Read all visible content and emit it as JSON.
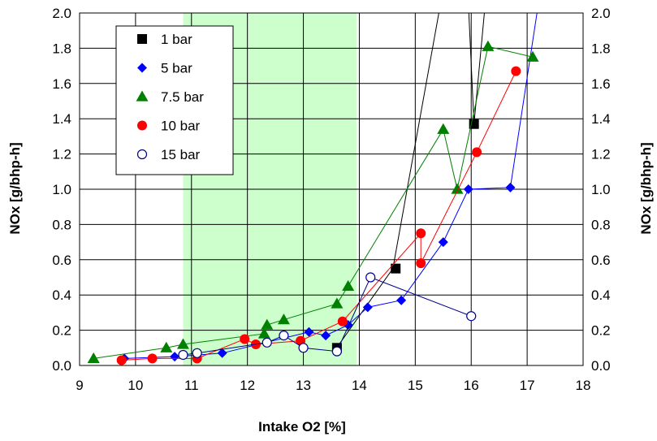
{
  "chart_data": {
    "type": "scatter",
    "xlabel": "Intake O2 [%]",
    "ylabel": "NOx [g/bhp-h]",
    "ylabel_right": "NOx [g/bhp-h]",
    "xlim": [
      9,
      18
    ],
    "ylim": [
      0,
      2.0
    ],
    "x_ticks": [
      "9",
      "10",
      "11",
      "12",
      "13",
      "14",
      "15",
      "16",
      "17",
      "18"
    ],
    "y_ticks": [
      "0.0",
      "0.2",
      "0.4",
      "0.6",
      "0.8",
      "1.0",
      "1.2",
      "1.4",
      "1.6",
      "1.8",
      "2.0"
    ],
    "grid": true,
    "legend_position": "top-left",
    "shaded_region": {
      "x_from": 10.85,
      "x_to": 13.95,
      "color": "#ccffcc"
    },
    "series": [
      {
        "name": "1 bar",
        "marker": "square",
        "color": "#000000",
        "points": [
          [
            13.6,
            0.1
          ],
          [
            14.65,
            0.55
          ],
          [
            16.05,
            1.37
          ]
        ],
        "trend": [
          [
            13.55,
            0.08
          ],
          [
            14.6,
            0.55
          ],
          [
            15.45,
            2.05
          ]
        ],
        "trend2": [
          [
            15.95,
            2.05
          ],
          [
            16.05,
            1.37
          ],
          [
            16.25,
            2.05
          ]
        ]
      },
      {
        "name": "5 bar",
        "marker": "diamond",
        "color": "#0000ff",
        "points": [
          [
            9.8,
            0.04
          ],
          [
            10.7,
            0.05
          ],
          [
            11.55,
            0.07
          ],
          [
            13.1,
            0.19
          ],
          [
            13.4,
            0.17
          ],
          [
            13.8,
            0.23
          ],
          [
            14.15,
            0.33
          ],
          [
            14.75,
            0.37
          ],
          [
            15.5,
            0.7
          ],
          [
            15.95,
            1.0
          ],
          [
            16.7,
            1.01
          ]
        ],
        "trend": [
          [
            9.8,
            0.04
          ],
          [
            10.7,
            0.05
          ],
          [
            11.55,
            0.07
          ],
          [
            13.1,
            0.19
          ],
          [
            13.4,
            0.17
          ],
          [
            13.8,
            0.23
          ],
          [
            14.15,
            0.33
          ],
          [
            14.75,
            0.37
          ],
          [
            15.5,
            0.7
          ],
          [
            15.95,
            1.0
          ],
          [
            16.7,
            1.01
          ],
          [
            17.2,
            2.05
          ]
        ]
      },
      {
        "name": "7.5 bar",
        "marker": "triangle",
        "color": "#008000",
        "points": [
          [
            9.25,
            0.04
          ],
          [
            10.55,
            0.1
          ],
          [
            10.85,
            0.12
          ],
          [
            12.3,
            0.18
          ],
          [
            12.35,
            0.23
          ],
          [
            12.65,
            0.26
          ],
          [
            13.6,
            0.35
          ],
          [
            13.8,
            0.45
          ],
          [
            15.5,
            1.34
          ],
          [
            15.75,
            1.0
          ],
          [
            16.3,
            1.81
          ],
          [
            17.1,
            1.75
          ]
        ],
        "trend": [
          [
            9.25,
            0.04
          ],
          [
            10.55,
            0.1
          ],
          [
            10.85,
            0.12
          ],
          [
            12.3,
            0.18
          ],
          [
            12.35,
            0.23
          ],
          [
            12.65,
            0.26
          ],
          [
            13.6,
            0.35
          ],
          [
            13.8,
            0.45
          ],
          [
            15.5,
            1.34
          ],
          [
            15.75,
            1.0
          ],
          [
            16.3,
            1.81
          ],
          [
            17.1,
            1.75
          ]
        ]
      },
      {
        "name": "10 bar",
        "marker": "circle",
        "color": "#ff0000",
        "points": [
          [
            9.75,
            0.03
          ],
          [
            10.3,
            0.04
          ],
          [
            11.1,
            0.04
          ],
          [
            11.95,
            0.15
          ],
          [
            12.15,
            0.12
          ],
          [
            12.95,
            0.14
          ],
          [
            13.7,
            0.25
          ],
          [
            15.1,
            0.75
          ],
          [
            15.1,
            0.58
          ],
          [
            16.1,
            1.21
          ],
          [
            16.8,
            1.67
          ]
        ],
        "trend": [
          [
            9.75,
            0.03
          ],
          [
            10.3,
            0.04
          ],
          [
            11.1,
            0.04
          ],
          [
            11.95,
            0.15
          ],
          [
            12.15,
            0.12
          ],
          [
            12.95,
            0.14
          ],
          [
            13.7,
            0.25
          ],
          [
            15.1,
            0.75
          ],
          [
            15.1,
            0.58
          ],
          [
            16.1,
            1.21
          ],
          [
            16.8,
            1.67
          ]
        ]
      },
      {
        "name": "15 bar",
        "marker": "open-circle",
        "color": "#00008b",
        "points": [
          [
            10.85,
            0.06
          ],
          [
            11.1,
            0.07
          ],
          [
            12.35,
            0.13
          ],
          [
            12.65,
            0.17
          ],
          [
            13.0,
            0.1
          ],
          [
            13.6,
            0.08
          ],
          [
            14.2,
            0.5
          ],
          [
            16.0,
            0.28
          ]
        ],
        "trend": [
          [
            10.85,
            0.06
          ],
          [
            11.1,
            0.07
          ],
          [
            12.35,
            0.13
          ],
          [
            12.65,
            0.17
          ],
          [
            13.0,
            0.1
          ],
          [
            13.6,
            0.08
          ],
          [
            14.2,
            0.5
          ],
          [
            16.0,
            0.28
          ]
        ]
      }
    ]
  }
}
